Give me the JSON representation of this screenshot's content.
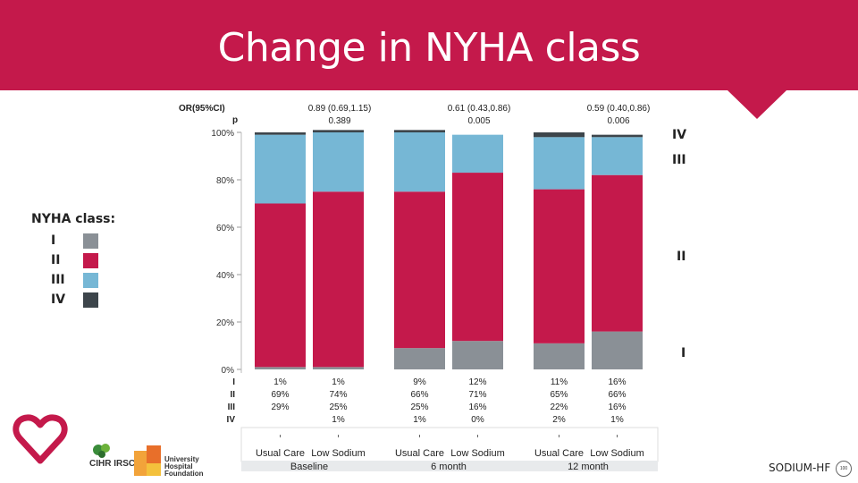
{
  "slide": {
    "title": "Change in NYHA class",
    "brand": "SODIUM-HF",
    "badge_text": "100",
    "logos": {
      "cihr": "CIHR IRSC",
      "uhf": [
        "University",
        "Hospital",
        "Foundation"
      ]
    }
  },
  "legend": {
    "title": "NYHA class:",
    "items": [
      {
        "label": "I",
        "color": "#8a9096"
      },
      {
        "label": "II",
        "color": "#c4194b"
      },
      {
        "label": "III",
        "color": "#76b7d5"
      },
      {
        "label": "IV",
        "color": "#3d454b"
      }
    ]
  },
  "side_labels": [
    "IV",
    "III",
    "II",
    "I"
  ],
  "chart_data": {
    "type": "bar",
    "stacked": true,
    "ylim": [
      0,
      100
    ],
    "yticks": [
      "0%",
      "20%",
      "40%",
      "60%",
      "80%",
      "100%"
    ],
    "stats_header": {
      "or_label": "OR(95%CI)",
      "p_label": "p"
    },
    "groups": [
      {
        "name": "Baseline",
        "or": "0.89 (0.69,1.15)",
        "p": "0.389"
      },
      {
        "name": "6 month",
        "or": "0.61 (0.43,0.86)",
        "p": "0.005"
      },
      {
        "name": "12 month",
        "or": "0.59 (0.40,0.86)",
        "p": "0.006"
      }
    ],
    "categories": [
      "Usual Care",
      "Low Sodium",
      "Usual Care",
      "Low Sodium",
      "Usual Care",
      "Low Sodium"
    ],
    "series": [
      {
        "name": "I",
        "color": "#8a9096",
        "values": [
          1,
          1,
          9,
          12,
          11,
          16
        ]
      },
      {
        "name": "II",
        "color": "#c4194b",
        "values": [
          69,
          74,
          66,
          71,
          65,
          66
        ]
      },
      {
        "name": "III",
        "color": "#76b7d5",
        "values": [
          29,
          25,
          25,
          16,
          22,
          16
        ]
      },
      {
        "name": "IV",
        "color": "#3d454b",
        "values": [
          1,
          1,
          1,
          0,
          2,
          1
        ]
      }
    ],
    "table_rows": [
      {
        "label": "I",
        "cells": [
          "1%",
          "1%",
          "9%",
          "12%",
          "11%",
          "16%"
        ]
      },
      {
        "label": "II",
        "cells": [
          "69%",
          "74%",
          "66%",
          "71%",
          "65%",
          "66%"
        ]
      },
      {
        "label": "III",
        "cells": [
          "29%",
          "25%",
          "25%",
          "16%",
          "22%",
          "16%"
        ]
      },
      {
        "label": "IV",
        "cells": [
          "",
          "1%",
          "1%",
          "0%",
          "2%",
          "1%"
        ]
      }
    ]
  }
}
